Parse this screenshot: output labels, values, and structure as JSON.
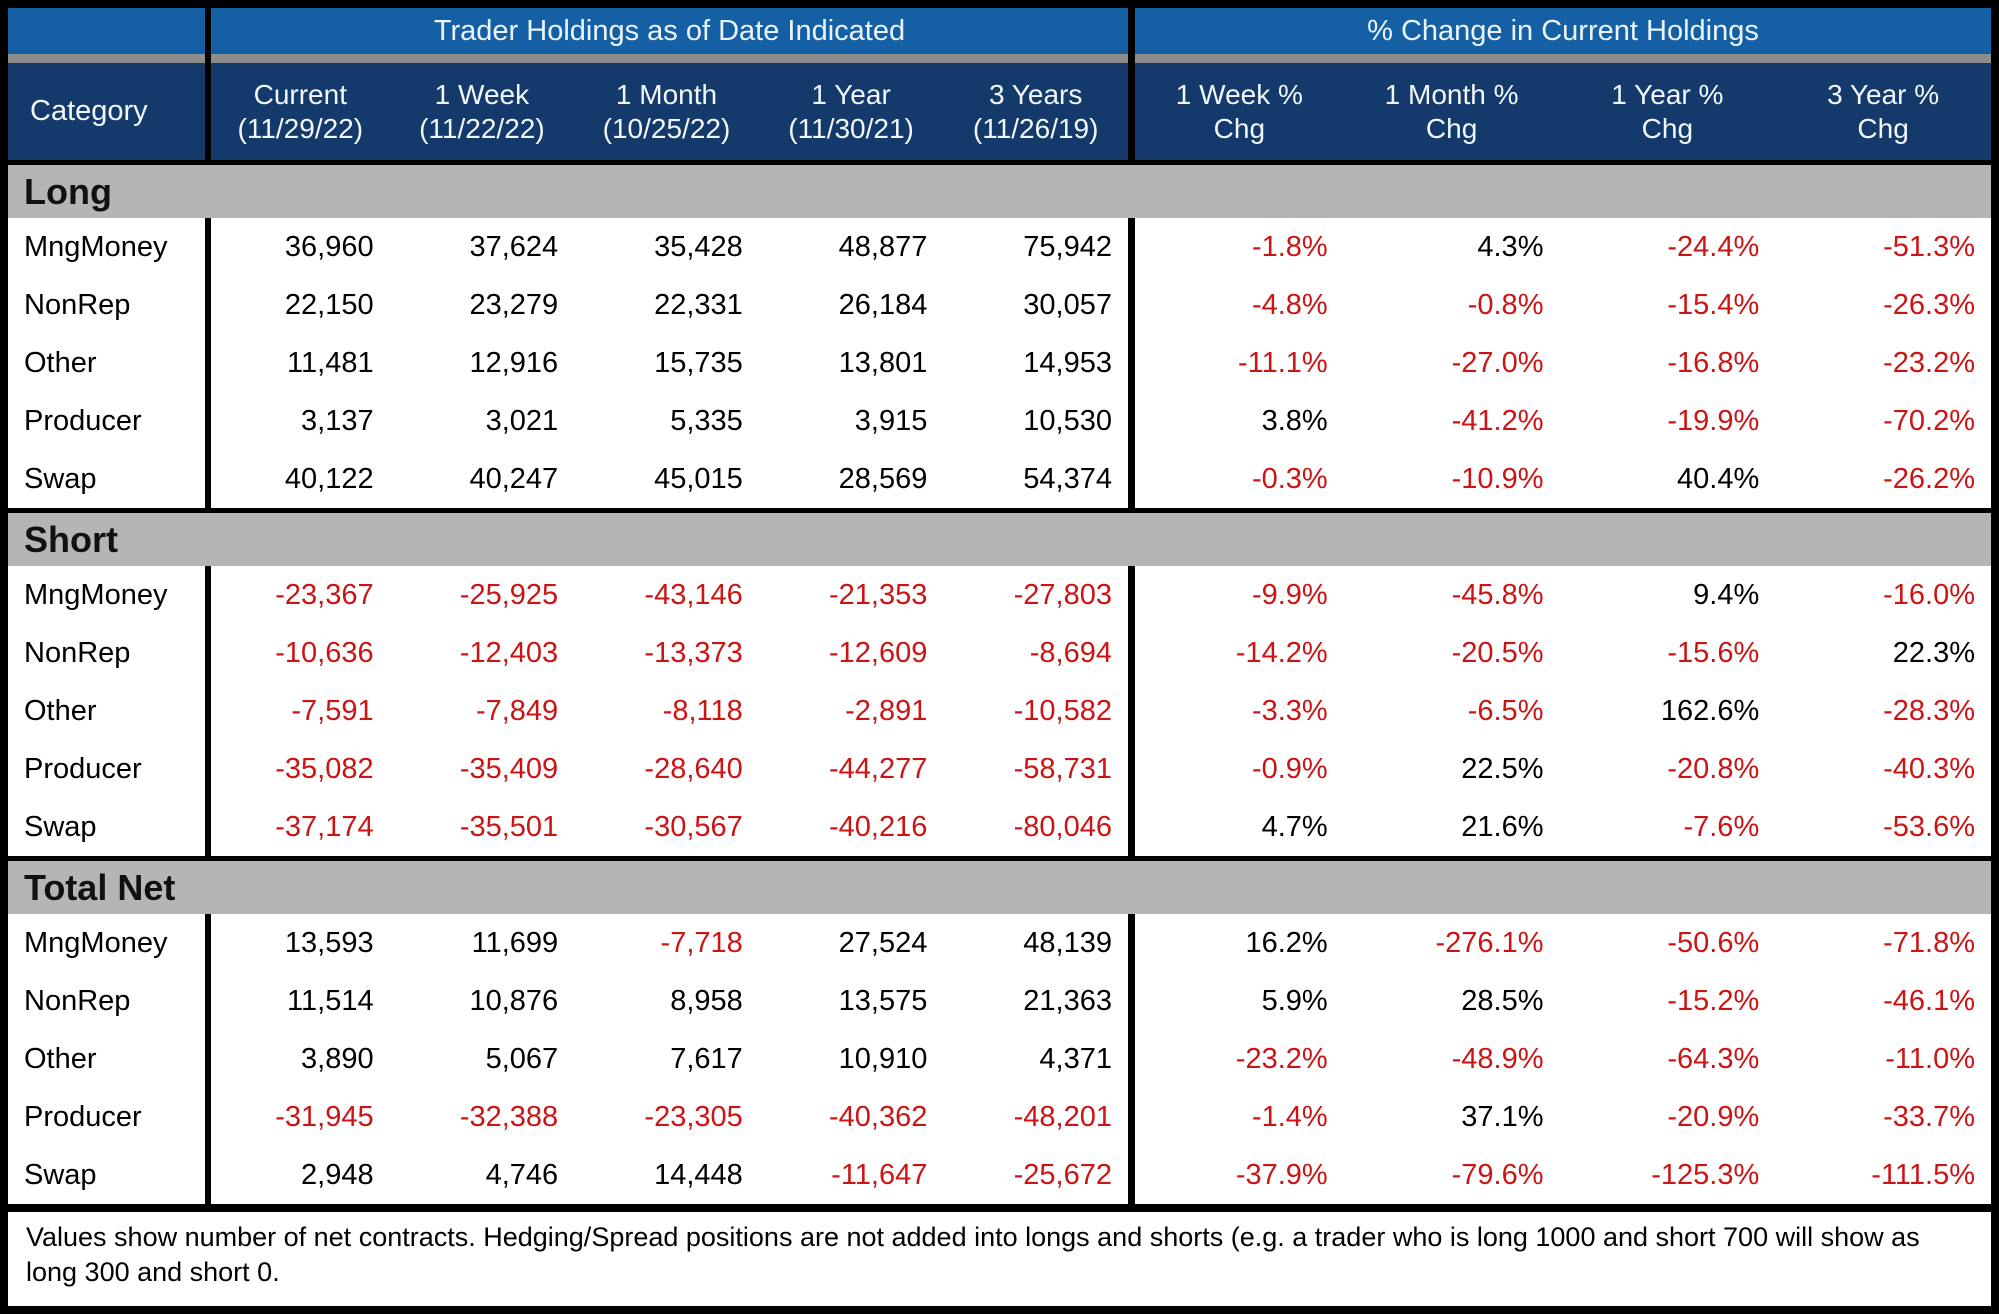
{
  "colors": {
    "band_blue": "#155FA5",
    "header_navy": "#14396B",
    "section_gray": "#B5B5B5",
    "strip_gray": "#8C8C8C",
    "negative_red": "#CC1414",
    "border_black": "#000000"
  },
  "chart_data": {
    "type": "table",
    "group_headers": [
      "Trader Holdings as of Date Indicated",
      "% Change in Current Holdings"
    ],
    "category_header": "Category",
    "columns": [
      {
        "line1": "Current",
        "line2": "(11/29/22)"
      },
      {
        "line1": "1 Week",
        "line2": "(11/22/22)"
      },
      {
        "line1": "1 Month",
        "line2": "(10/25/22)"
      },
      {
        "line1": "1 Year",
        "line2": "(11/30/21)"
      },
      {
        "line1": "3 Years",
        "line2": "(11/26/19)"
      },
      {
        "line1": "1 Week %",
        "line2": "Chg"
      },
      {
        "line1": "1 Month %",
        "line2": "Chg"
      },
      {
        "line1": "1 Year %",
        "line2": "Chg"
      },
      {
        "line1": "3 Year %",
        "line2": "Chg"
      }
    ],
    "sections": [
      {
        "label": "Long",
        "rows": [
          {
            "category": "MngMoney",
            "values": [
              "36,960",
              "37,624",
              "35,428",
              "48,877",
              "75,942",
              "-1.8%",
              "4.3%",
              "-24.4%",
              "-51.3%"
            ]
          },
          {
            "category": "NonRep",
            "values": [
              "22,150",
              "23,279",
              "22,331",
              "26,184",
              "30,057",
              "-4.8%",
              "-0.8%",
              "-15.4%",
              "-26.3%"
            ]
          },
          {
            "category": "Other",
            "values": [
              "11,481",
              "12,916",
              "15,735",
              "13,801",
              "14,953",
              "-11.1%",
              "-27.0%",
              "-16.8%",
              "-23.2%"
            ]
          },
          {
            "category": "Producer",
            "values": [
              "3,137",
              "3,021",
              "5,335",
              "3,915",
              "10,530",
              "3.8%",
              "-41.2%",
              "-19.9%",
              "-70.2%"
            ]
          },
          {
            "category": "Swap",
            "values": [
              "40,122",
              "40,247",
              "45,015",
              "28,569",
              "54,374",
              "-0.3%",
              "-10.9%",
              "40.4%",
              "-26.2%"
            ]
          }
        ]
      },
      {
        "label": "Short",
        "rows": [
          {
            "category": "MngMoney",
            "values": [
              "-23,367",
              "-25,925",
              "-43,146",
              "-21,353",
              "-27,803",
              "-9.9%",
              "-45.8%",
              "9.4%",
              "-16.0%"
            ]
          },
          {
            "category": "NonRep",
            "values": [
              "-10,636",
              "-12,403",
              "-13,373",
              "-12,609",
              "-8,694",
              "-14.2%",
              "-20.5%",
              "-15.6%",
              "22.3%"
            ]
          },
          {
            "category": "Other",
            "values": [
              "-7,591",
              "-7,849",
              "-8,118",
              "-2,891",
              "-10,582",
              "-3.3%",
              "-6.5%",
              "162.6%",
              "-28.3%"
            ]
          },
          {
            "category": "Producer",
            "values": [
              "-35,082",
              "-35,409",
              "-28,640",
              "-44,277",
              "-58,731",
              "-0.9%",
              "22.5%",
              "-20.8%",
              "-40.3%"
            ]
          },
          {
            "category": "Swap",
            "values": [
              "-37,174",
              "-35,501",
              "-30,567",
              "-40,216",
              "-80,046",
              "4.7%",
              "21.6%",
              "-7.6%",
              "-53.6%"
            ]
          }
        ]
      },
      {
        "label": "Total Net",
        "rows": [
          {
            "category": "MngMoney",
            "values": [
              "13,593",
              "11,699",
              "-7,718",
              "27,524",
              "48,139",
              "16.2%",
              "-276.1%",
              "-50.6%",
              "-71.8%"
            ]
          },
          {
            "category": "NonRep",
            "values": [
              "11,514",
              "10,876",
              "8,958",
              "13,575",
              "21,363",
              "5.9%",
              "28.5%",
              "-15.2%",
              "-46.1%"
            ]
          },
          {
            "category": "Other",
            "values": [
              "3,890",
              "5,067",
              "7,617",
              "10,910",
              "4,371",
              "-23.2%",
              "-48.9%",
              "-64.3%",
              "-11.0%"
            ]
          },
          {
            "category": "Producer",
            "values": [
              "-31,945",
              "-32,388",
              "-23,305",
              "-40,362",
              "-48,201",
              "-1.4%",
              "37.1%",
              "-20.9%",
              "-33.7%"
            ]
          },
          {
            "category": "Swap",
            "values": [
              "2,948",
              "4,746",
              "14,448",
              "-11,647",
              "-25,672",
              "-37.9%",
              "-79.6%",
              "-125.3%",
              "-111.5%"
            ]
          }
        ]
      }
    ],
    "footnote": "Values show number of net contracts. Hedging/Spread positions are not added into longs and shorts (e.g. a trader who is long 1000 and short 700 will show as long 300 and short 0."
  }
}
